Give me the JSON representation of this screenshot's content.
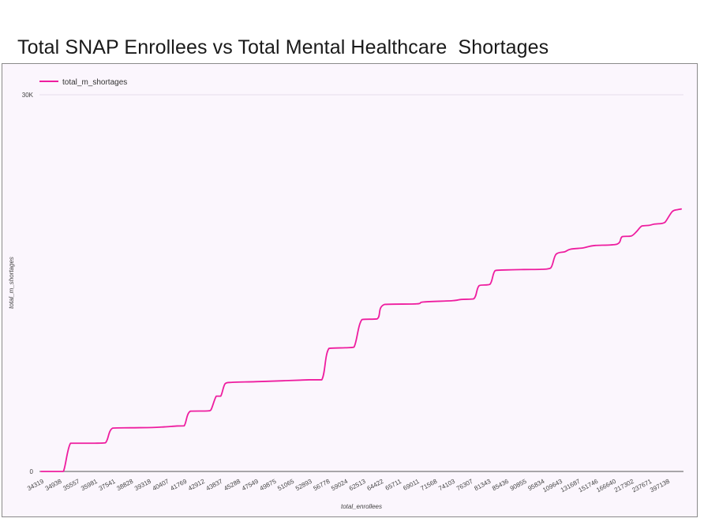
{
  "chart_data": {
    "type": "line",
    "title": "Total SNAP Enrollees vs Total Mental Healthcare  Shortages",
    "xlabel": "total_enrollees",
    "ylabel": "total_m_shortages",
    "x_tick_labels": [
      "34319",
      "34938",
      "35557",
      "35981",
      "37541",
      "38828",
      "39318",
      "40407",
      "41769",
      "42912",
      "43837",
      "45288",
      "47549",
      "49875",
      "51065",
      "52893",
      "56778",
      "59024",
      "62513",
      "64422",
      "65711",
      "69011",
      "71568",
      "74103",
      "76307",
      "81343",
      "85436",
      "90855",
      "95834",
      "109643",
      "131687",
      "151746",
      "166640",
      "217302",
      "237671",
      "397138"
    ],
    "y_tick_labels": [
      "0",
      "30K"
    ],
    "ylim": [
      0,
      30000
    ],
    "grid": "horizontal",
    "legend_position": "top-left",
    "series": [
      {
        "name": "total_m_shortages",
        "color": "#ee1d9f",
        "points": [
          [
            0,
            0
          ],
          [
            0.5,
            0
          ],
          [
            0.9,
            0
          ],
          [
            1.25,
            0
          ],
          [
            1.65,
            2250
          ],
          [
            2.3,
            2250
          ],
          [
            3.0,
            2250
          ],
          [
            3.6,
            2280
          ],
          [
            4.0,
            3450
          ],
          [
            5.0,
            3480
          ],
          [
            6.2,
            3500
          ],
          [
            6.9,
            3550
          ],
          [
            7.6,
            3620
          ],
          [
            8.0,
            3630
          ],
          [
            8.35,
            4800
          ],
          [
            9.3,
            4820
          ],
          [
            9.5,
            4900
          ],
          [
            9.8,
            6000
          ],
          [
            10.05,
            6000
          ],
          [
            10.3,
            7000
          ],
          [
            10.7,
            7100
          ],
          [
            12.0,
            7150
          ],
          [
            13.5,
            7220
          ],
          [
            15.0,
            7300
          ],
          [
            15.7,
            7300
          ],
          [
            16.1,
            9800
          ],
          [
            17.0,
            9850
          ],
          [
            17.5,
            9900
          ],
          [
            17.95,
            12100
          ],
          [
            18.8,
            12150
          ],
          [
            19.2,
            13300
          ],
          [
            21.0,
            13350
          ],
          [
            21.4,
            13500
          ],
          [
            23.0,
            13600
          ],
          [
            23.5,
            13700
          ],
          [
            24.2,
            13750
          ],
          [
            24.5,
            14800
          ],
          [
            25.1,
            14900
          ],
          [
            25.4,
            16000
          ],
          [
            26.0,
            16050
          ],
          [
            27.0,
            16080
          ],
          [
            28.0,
            16100
          ],
          [
            28.5,
            16200
          ],
          [
            28.8,
            17300
          ],
          [
            29.3,
            17500
          ],
          [
            29.6,
            17700
          ],
          [
            30.3,
            17800
          ],
          [
            30.6,
            17900
          ],
          [
            31.0,
            18000
          ],
          [
            32.2,
            18100
          ],
          [
            32.5,
            18700
          ],
          [
            33.0,
            18750
          ],
          [
            33.3,
            19100
          ],
          [
            33.6,
            19550
          ],
          [
            34.0,
            19600
          ],
          [
            34.3,
            19700
          ],
          [
            34.7,
            19750
          ],
          [
            34.9,
            19850
          ],
          [
            35.3,
            20700
          ],
          [
            35.6,
            20850
          ],
          [
            35.8,
            20900
          ]
        ]
      }
    ]
  }
}
